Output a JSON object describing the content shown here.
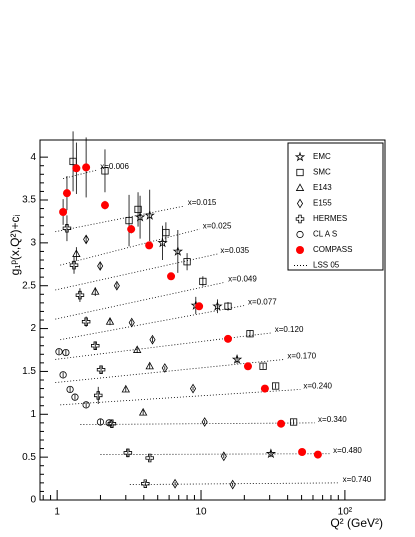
{
  "chart_data": {
    "type": "scatter",
    "xscale": "log",
    "x_label": "Q² (GeV²)",
    "y_label": "g₁ᵖ(x,Q²)+cᵢ",
    "xlim": [
      0.76,
      190
    ],
    "ylim": [
      0,
      4.2
    ],
    "xticks": [
      1,
      10,
      {
        "value": 100,
        "label": "10²"
      }
    ],
    "yticks": [
      0,
      0.5,
      1,
      1.5,
      2,
      2.5,
      3,
      3.5,
      4
    ],
    "series": [
      {
        "name": "EMC",
        "marker": "star",
        "color": "#000000",
        "x": [
          3.77,
          4.4,
          5.4,
          6.9,
          9.2,
          13,
          17.8,
          30.6
        ],
        "values": [
          3.3,
          3.32,
          3.0,
          2.9,
          2.27,
          2.26,
          1.64,
          0.54
        ],
        "errors": [
          0.25,
          0.3,
          0.2,
          0.25,
          0.1,
          0.08,
          0.05,
          0.04
        ]
      },
      {
        "name": "SMC",
        "marker": "square",
        "color": "#000000",
        "x": [
          1.29,
          2.15,
          3.16,
          3.65,
          5.7,
          8.0,
          10.3,
          15.4,
          21.9,
          27,
          33,
          44
        ],
        "values": [
          3.95,
          3.84,
          3.26,
          3.39,
          3.12,
          2.78,
          2.55,
          2.26,
          1.94,
          1.56,
          1.33,
          0.91
        ],
        "errors": [
          0.35,
          0.25,
          0.3,
          0.2,
          0.12,
          0.1,
          0.06,
          0.05,
          0.04,
          0.03,
          0.03,
          0.03
        ]
      },
      {
        "name": "E143",
        "marker": "triangle",
        "color": "#000000",
        "x": [
          1.36,
          1.84,
          2.33,
          3.6,
          4.4,
          3.0,
          3.96
        ],
        "values": [
          2.87,
          2.43,
          2.08,
          1.75,
          1.56,
          1.29,
          1.02
        ],
        "errors": [
          0.08,
          0.05,
          0.04,
          0.03,
          0.03,
          0.03,
          0.03
        ]
      },
      {
        "name": "E155",
        "marker": "diamond",
        "color": "#000000",
        "x": [
          1.59,
          1.99,
          2.6,
          3.3,
          4.6,
          5.6,
          8.8,
          10.6,
          14.4,
          16.6,
          6.6
        ],
        "values": [
          3.04,
          2.73,
          2.5,
          2.07,
          1.87,
          1.54,
          1.3,
          0.91,
          0.51,
          0.18,
          0.19
        ],
        "errors": [
          0.05,
          0.04,
          0.03,
          0.03,
          0.03,
          0.02,
          0.02,
          0.02,
          0.02,
          0.02,
          0.02
        ]
      },
      {
        "name": "HERMES",
        "marker": "cross",
        "color": "#000000",
        "x": [
          1.17,
          1.31,
          1.44,
          1.59,
          1.84,
          2.02,
          1.93,
          2.4,
          3.1,
          4.4,
          4.1
        ],
        "values": [
          3.17,
          2.74,
          2.39,
          2.08,
          1.8,
          1.52,
          1.22,
          0.89,
          0.55,
          0.49,
          0.19
        ],
        "errors": [
          0.15,
          0.1,
          0.08,
          0.06,
          0.05,
          0.04,
          0.1,
          0.05,
          0.05,
          0.03,
          0.03
        ]
      },
      {
        "name": "CL A S",
        "marker": "circle",
        "color": "#000000",
        "x": [
          1.03,
          1.15,
          1.1,
          1.23,
          1.33,
          1.59,
          2.0,
          2.3
        ],
        "values": [
          1.73,
          1.72,
          1.46,
          1.29,
          1.2,
          1.11,
          0.91,
          0.9
        ],
        "errors": [
          0.03,
          0.03,
          0.03,
          0.03,
          0.03,
          0.03,
          0.03,
          0.03
        ]
      },
      {
        "name": "COMPASS",
        "marker": "filled-circle",
        "color": "#ff0000",
        "x": [
          1.1,
          1.17,
          1.36,
          1.59,
          2.15,
          3.27,
          4.36,
          6.19,
          9.7,
          15.4,
          21.2,
          27.8,
          36.0,
          50.4,
          64.9
        ],
        "values": [
          3.36,
          3.58,
          3.87,
          3.88,
          3.44,
          3.16,
          2.97,
          2.61,
          2.26,
          1.88,
          1.56,
          1.3,
          0.89,
          0.56,
          0.53
        ],
        "errors": [
          0.15,
          0.2,
          0.3,
          0.35,
          0.05,
          0.05,
          0.04,
          0.04,
          0.03,
          0.03,
          0.03,
          0.03,
          0.03,
          0.03,
          0.03
        ]
      }
    ],
    "fit_name": "LSS 05",
    "fit_color": "#000000",
    "fits": [
      {
        "label": "x=0.006",
        "x": [
          1.1,
          1.9
        ],
        "values": [
          3.75,
          3.85
        ]
      },
      {
        "label": "x=0.015",
        "x": [
          0.97,
          7.7
        ],
        "values": [
          3.13,
          3.43
        ]
      },
      {
        "label": "x=0.025",
        "x": [
          1.05,
          9.8
        ],
        "values": [
          2.74,
          3.16
        ]
      },
      {
        "label": "x=0.035",
        "x": [
          0.97,
          13
        ],
        "values": [
          2.45,
          2.87
        ]
      },
      {
        "label": "x=0.049",
        "x": [
          0.97,
          14.7
        ],
        "values": [
          2.11,
          2.54
        ]
      },
      {
        "label": "x=0.077",
        "x": [
          1.05,
          20.2
        ],
        "values": [
          1.87,
          2.27
        ]
      },
      {
        "label": "x=0.120",
        "x": [
          0.97,
          31
        ],
        "values": [
          1.64,
          1.95
        ]
      },
      {
        "label": "x=0.170",
        "x": [
          0.97,
          38
        ],
        "values": [
          1.37,
          1.64
        ]
      },
      {
        "label": "x=0.240",
        "x": [
          1.05,
          49
        ],
        "values": [
          1.11,
          1.29
        ]
      },
      {
        "label": "x=0.340",
        "x": [
          1.45,
          62
        ],
        "values": [
          0.88,
          0.9
        ]
      },
      {
        "label": "x=0.480",
        "x": [
          2.0,
          79
        ],
        "values": [
          0.53,
          0.54
        ]
      },
      {
        "label": "x=0.740",
        "x": [
          3.2,
          92
        ],
        "values": [
          0.18,
          0.2
        ]
      }
    ]
  }
}
